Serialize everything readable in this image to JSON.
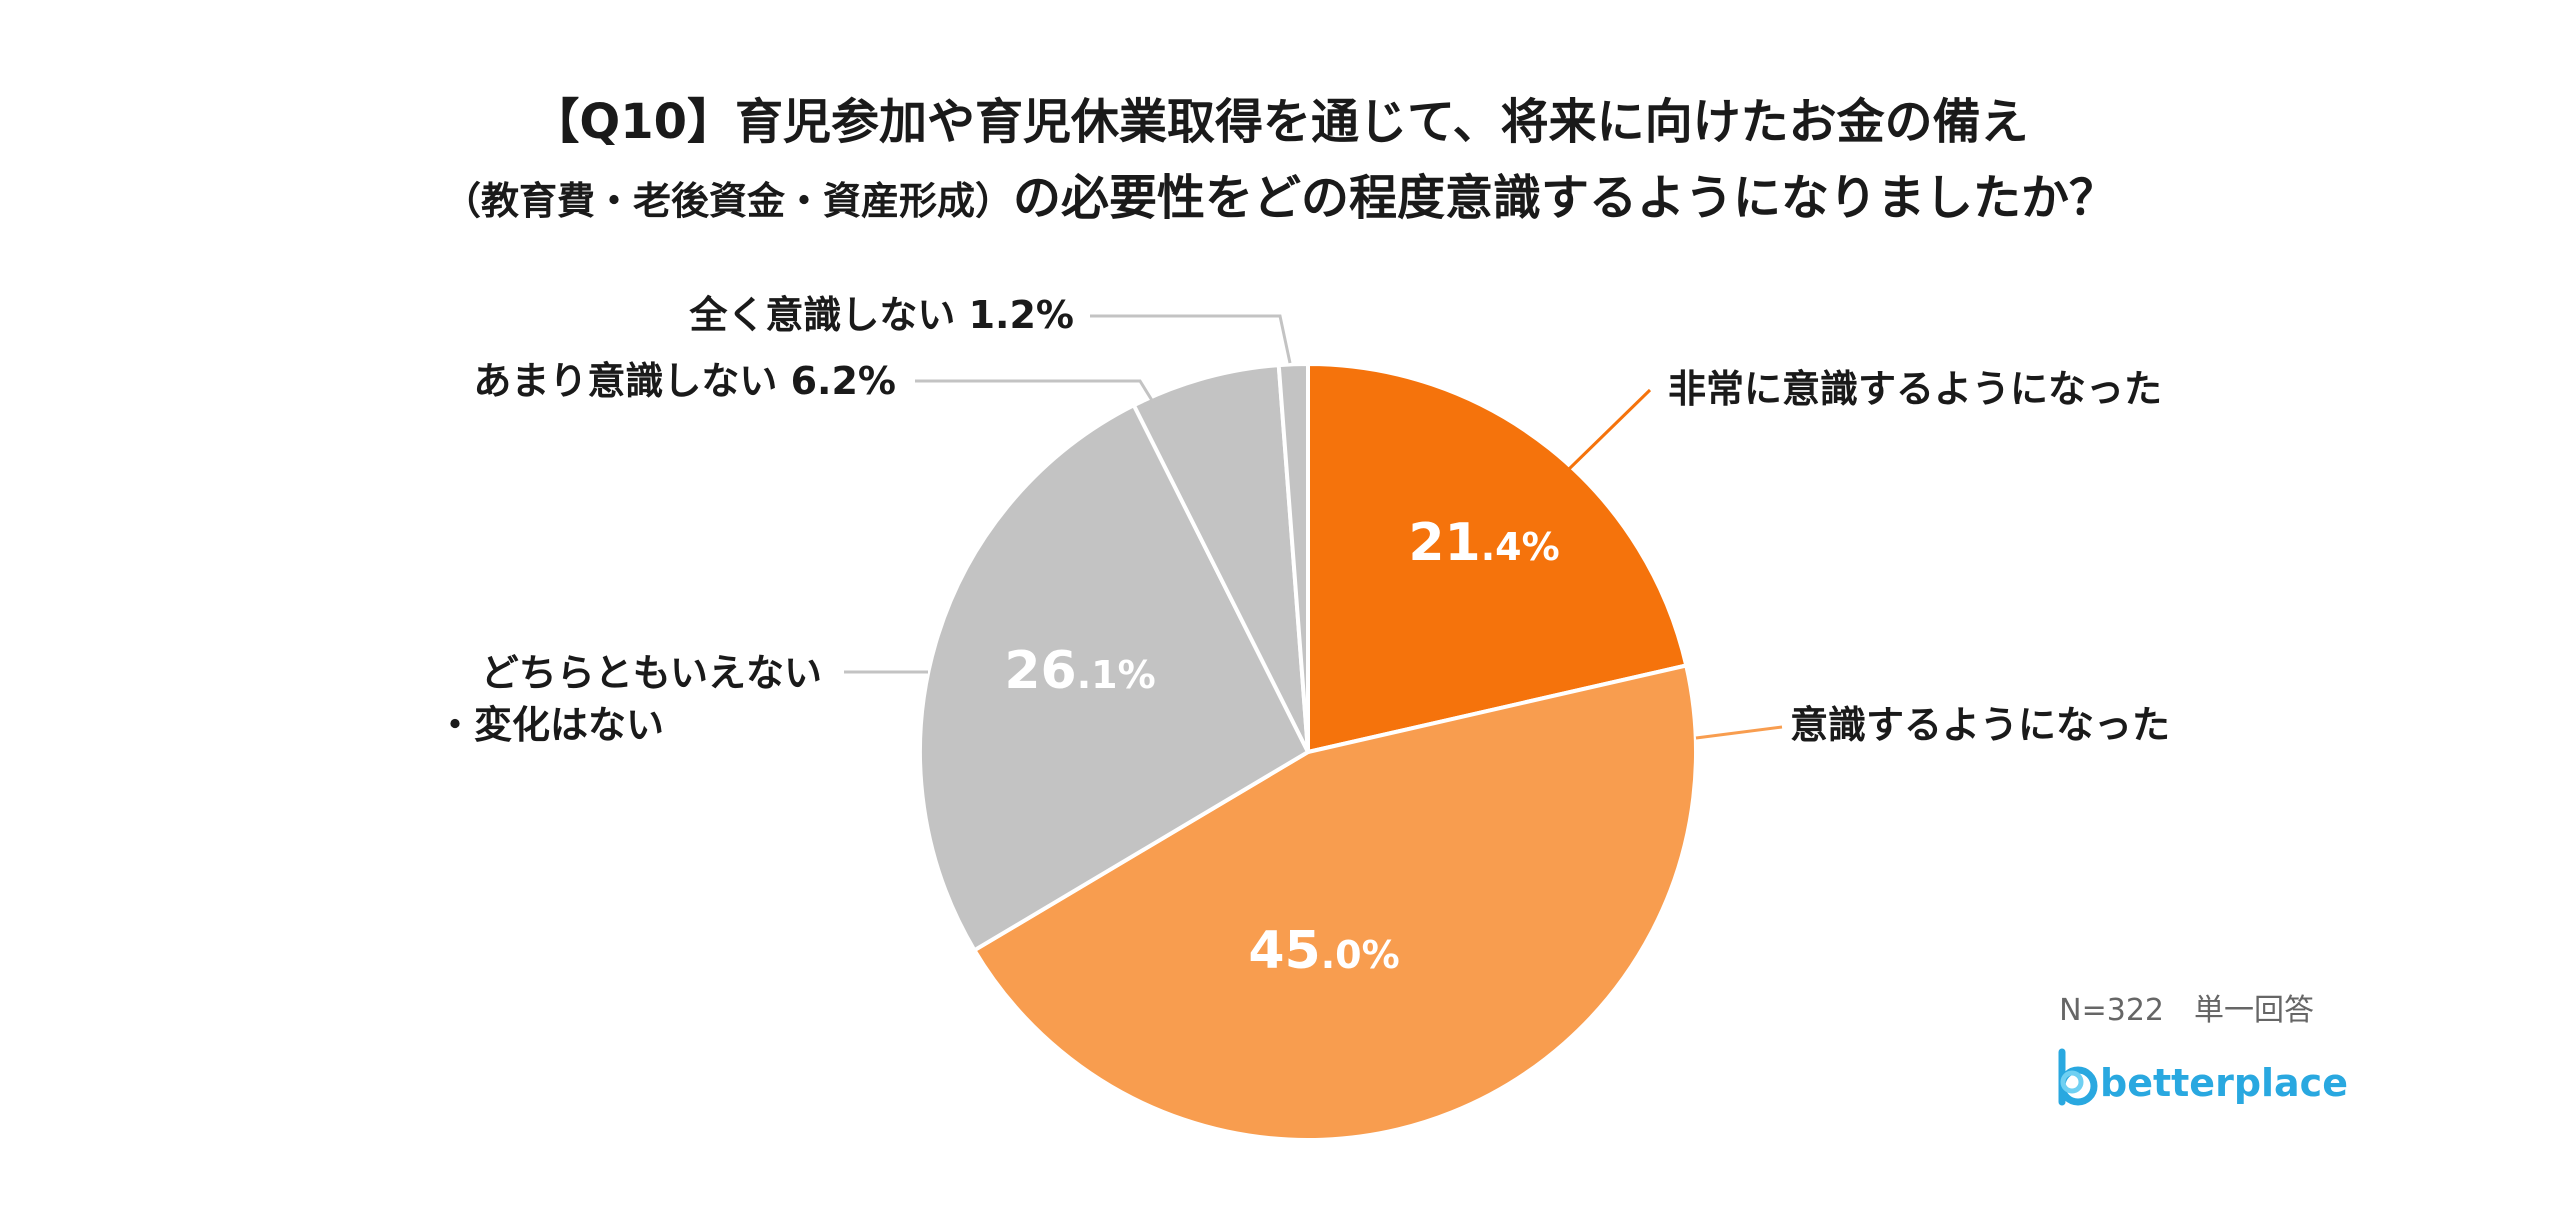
{
  "title": {
    "line1": "【Q10】育児参加や育児休業取得を通じて、将来に向けたお金の備え",
    "line2_small": "（教育費・老後資金・資産形成）",
    "line2_main": "の必要性をどの程度意識するようになりましたか？"
  },
  "chart_data": {
    "type": "pie",
    "title": "【Q10】育児参加や育児休業取得を通じて、将来に向けたお金の備え（教育費・老後資金・資産形成）の必要性をどの程度意識するようになりましたか？",
    "start_angle": "12 o'clock",
    "direction": "clockwise",
    "slices": [
      {
        "label": "非常に意識するようになった",
        "value": 21.4,
        "color": "#F5730C"
      },
      {
        "label": "意識するようになった",
        "value": 45.0,
        "color": "#F89D4F"
      },
      {
        "label": "どちらともいえない・変化はない",
        "value": 26.1,
        "color": "#C3C3C3"
      },
      {
        "label": "あまり意識しない",
        "value": 6.2,
        "color": "#C3C3C3"
      },
      {
        "label": "全く意識しない",
        "value": 1.2,
        "color": "#C3C3C3"
      }
    ],
    "data_labels": [
      {
        "int": "21",
        "dec": ".4%"
      },
      {
        "int": "45",
        "dec": ".0%"
      },
      {
        "int": "26",
        "dec": ".1%"
      }
    ],
    "outside_labels": {
      "s0": "非常に意識するようになった",
      "s1": "意識するようになった",
      "s2_line1": "どちらともいえない",
      "s2_line2": "・変化はない",
      "s3": "あまり意識しない 6.2%",
      "s4": "全く意識しない 1.2%"
    }
  },
  "footnote": "N=322　単一回答",
  "logo": {
    "text": "betterplace",
    "color": "#29A8E0"
  }
}
